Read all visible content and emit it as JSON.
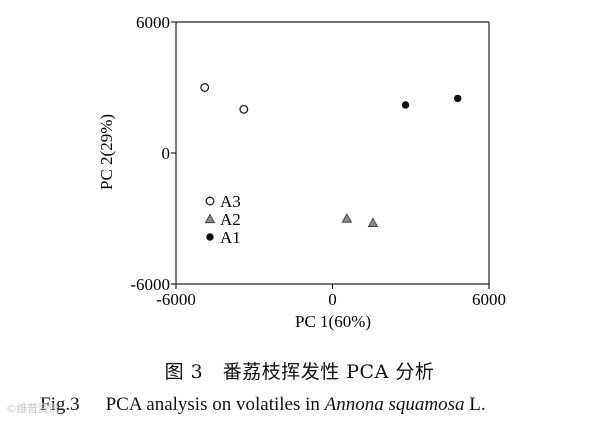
{
  "chart_data": {
    "type": "scatter",
    "xlabel": "PC 1(60%)",
    "ylabel": "PC 2(29%)",
    "xlim": [
      -6000,
      6000
    ],
    "ylim": [
      -6000,
      6000
    ],
    "x_tick_labels": [
      "-6000",
      "0",
      "6000"
    ],
    "y_tick_labels": [
      "6000",
      "0",
      "-6000"
    ],
    "legend_position": "left-middle",
    "series": [
      {
        "name": "A3",
        "marker": "open-circle",
        "color": "#ffffff",
        "stroke": "#222222",
        "points": [
          [
            -4900,
            3000
          ],
          [
            -3400,
            2000
          ]
        ]
      },
      {
        "name": "A2",
        "marker": "triangle",
        "color": "#8a8a8a",
        "stroke": "#333333",
        "points": [
          [
            550,
            -3000
          ],
          [
            1550,
            -3200
          ]
        ]
      },
      {
        "name": "A1",
        "marker": "filled-circle",
        "color": "#111111",
        "stroke": "#111111",
        "points": [
          [
            2800,
            2200
          ],
          [
            4800,
            2500
          ]
        ]
      }
    ]
  },
  "caption": {
    "cn": "图 3　番荔枝挥发性 PCA 分析",
    "en_label": "Fig.3",
    "en_text": "PCA analysis on volatiles in ",
    "en_species": "Annona squamosa",
    "en_tail": " L."
  },
  "watermark": "©维普资讯"
}
